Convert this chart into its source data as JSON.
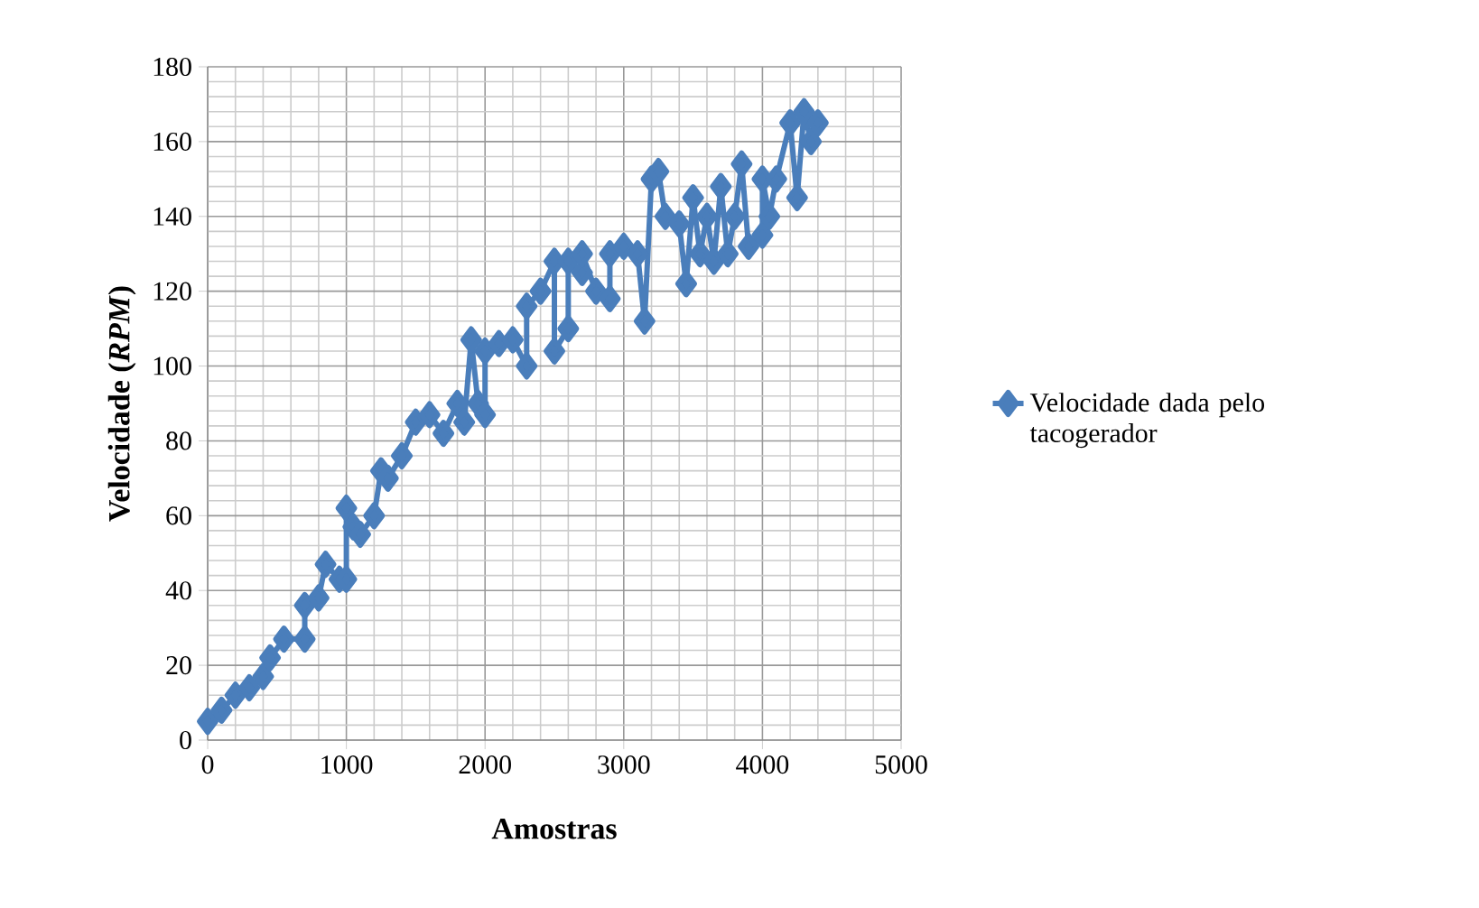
{
  "chart_data": {
    "type": "line",
    "xlabel": "Amostras",
    "ylabel": "**Velocidade (*RPM*)**",
    "xlim": [
      0,
      5000
    ],
    "ylim": [
      0,
      180
    ],
    "xticks": [
      0,
      1000,
      2000,
      3000,
      4000,
      5000
    ],
    "yticks": [
      0,
      20,
      40,
      60,
      80,
      100,
      120,
      140,
      160,
      180
    ],
    "grid": true,
    "legend": "right",
    "marker": "diamond",
    "line_style": "solid",
    "x": [
      0,
      100,
      200,
      300,
      400,
      450,
      550,
      700,
      700,
      800,
      850,
      950,
      1000,
      1000,
      1050,
      1100,
      1200,
      1250,
      1300,
      1400,
      1500,
      1600,
      1700,
      1800,
      1850,
      1900,
      1950,
      2000,
      2000,
      2100,
      2200,
      2300,
      2300,
      2400,
      2500,
      2500,
      2600,
      2600,
      2700,
      2700,
      2800,
      2900,
      2900,
      3000,
      3100,
      3150,
      3200,
      3250,
      3300,
      3400,
      3450,
      3500,
      3550,
      3600,
      3650,
      3700,
      3750,
      3800,
      3850,
      3900,
      4000,
      4000,
      4050,
      4100,
      4200,
      4250,
      4300,
      4350,
      4400
    ],
    "series": [
      {
        "name": "Velocidade dada pelo tacogerador",
        "color": "#4a7ebb",
        "values": [
          5,
          8,
          12,
          14,
          17,
          22,
          27,
          27,
          36,
          38,
          47,
          43,
          43,
          62,
          57,
          55,
          60,
          72,
          70,
          76,
          85,
          87,
          82,
          90,
          85,
          107,
          90,
          87,
          104,
          106,
          107,
          100,
          116,
          120,
          128,
          104,
          110,
          128,
          125,
          130,
          120,
          118,
          130,
          132,
          130,
          112,
          150,
          152,
          140,
          138,
          122,
          145,
          130,
          140,
          128,
          148,
          130,
          140,
          154,
          132,
          135,
          150,
          140,
          150,
          165,
          145,
          168,
          160,
          165
        ]
      }
    ]
  }
}
